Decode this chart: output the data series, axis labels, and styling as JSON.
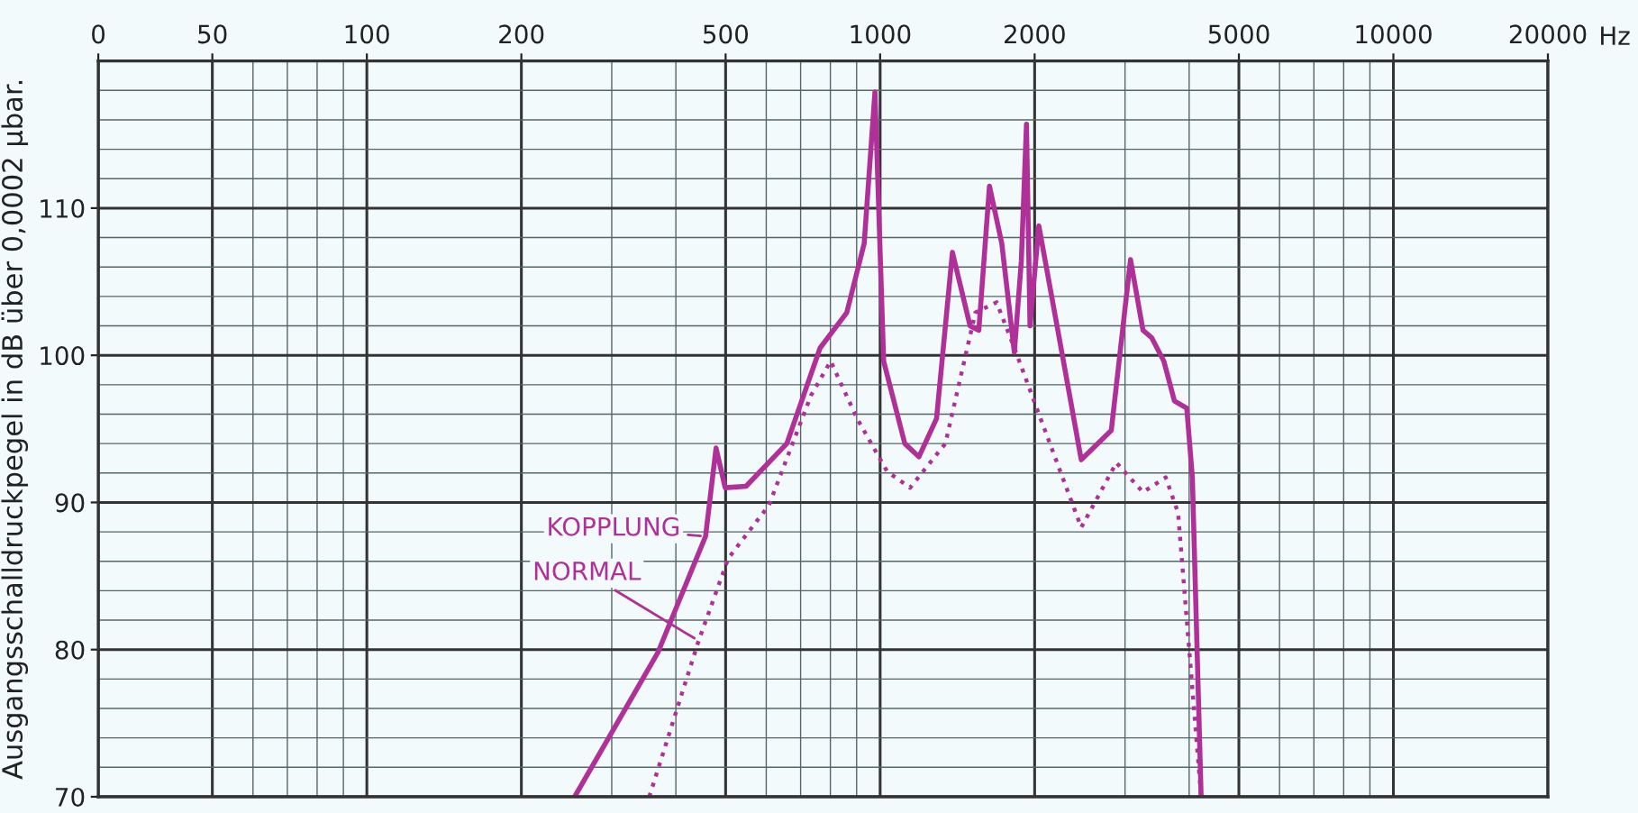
{
  "chart_data": {
    "type": "line",
    "ylabel": "Ausgangsschalldruckpegel in dB über 0,0002 μbar.",
    "xlabel": "Hz",
    "log": "x",
    "xlim": [
      0,
      20000
    ],
    "ylim": [
      70,
      120
    ],
    "xticks": [
      0,
      50,
      100,
      200,
      500,
      1000,
      2000,
      5000,
      10000,
      20000
    ],
    "yticks": [
      70,
      80,
      90,
      100,
      110
    ],
    "grid": true,
    "marker": "none",
    "series": [
      {
        "name": "KOPPLUNG",
        "color": "#b0309a",
        "line_style": "solid",
        "x": [
          254,
          369,
          457,
          479,
          499,
          548,
          658,
          764,
          861,
          931,
          977,
          1016,
          1117,
          1190,
          1288,
          1383,
          1497,
          1557,
          1633,
          1726,
          1826,
          1884,
          1928,
          1959,
          2038,
          2276,
          2465,
          2821,
          3075,
          3252,
          3380,
          3571,
          3744,
          3958,
          4058,
          4221
        ],
        "values": [
          70,
          79.8,
          87.7,
          93.7,
          91.0,
          91.1,
          94.0,
          100.5,
          102.9,
          107.6,
          117.9,
          99.6,
          94.0,
          93.1,
          95.7,
          107.0,
          102.0,
          101.7,
          111.5,
          107.6,
          100.2,
          106.4,
          115.7,
          102.0,
          108.8,
          99.6,
          92.9,
          94.9,
          106.5,
          101.7,
          101.2,
          99.6,
          96.9,
          96.4,
          91.7,
          70
        ]
      },
      {
        "name": "NORMAL",
        "color": "#b0309a",
        "line_style": "dotted",
        "x": [
          355,
          443,
          506,
          607,
          734,
          801,
          902,
          1032,
          1144,
          1340,
          1533,
          1686,
          1826,
          2054,
          2465,
          2886,
          3252,
          3601,
          3806,
          4221
        ],
        "values": [
          70,
          80.6,
          86.2,
          89.8,
          97.3,
          99.6,
          95.7,
          92.1,
          91.0,
          94.0,
          102.9,
          103.6,
          100.5,
          95.7,
          88.3,
          92.7,
          90.7,
          91.7,
          89.3,
          70
        ]
      }
    ]
  }
}
